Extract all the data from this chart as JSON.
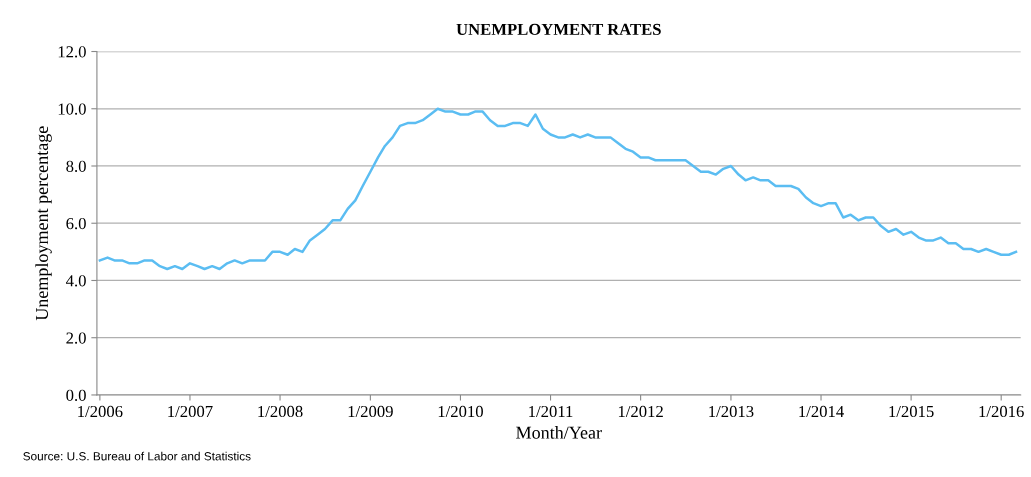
{
  "chart_data": {
    "type": "line",
    "title": "UNEMPLOYMENT RATES",
    "xlabel": "Month/Year",
    "ylabel": "Unemployment percentage",
    "annotations": [
      "Source: U.S. Bureau of Labor and Statistics"
    ],
    "x": [
      "2006-01",
      "2006-02",
      "2006-03",
      "2006-04",
      "2006-05",
      "2006-06",
      "2006-07",
      "2006-08",
      "2006-09",
      "2006-10",
      "2006-11",
      "2006-12",
      "2007-01",
      "2007-02",
      "2007-03",
      "2007-04",
      "2007-05",
      "2007-06",
      "2007-07",
      "2007-08",
      "2007-09",
      "2007-10",
      "2007-11",
      "2007-12",
      "2008-01",
      "2008-02",
      "2008-03",
      "2008-04",
      "2008-05",
      "2008-06",
      "2008-07",
      "2008-08",
      "2008-09",
      "2008-10",
      "2008-11",
      "2008-12",
      "2009-01",
      "2009-02",
      "2009-03",
      "2009-04",
      "2009-05",
      "2009-06",
      "2009-07",
      "2009-08",
      "2009-09",
      "2009-10",
      "2009-11",
      "2009-12",
      "2010-01",
      "2010-02",
      "2010-03",
      "2010-04",
      "2010-05",
      "2010-06",
      "2010-07",
      "2010-08",
      "2010-09",
      "2010-10",
      "2010-11",
      "2010-12",
      "2011-01",
      "2011-02",
      "2011-03",
      "2011-04",
      "2011-05",
      "2011-06",
      "2011-07",
      "2011-08",
      "2011-09",
      "2011-10",
      "2011-11",
      "2011-12",
      "2012-01",
      "2012-02",
      "2012-03",
      "2012-04",
      "2012-05",
      "2012-06",
      "2012-07",
      "2012-08",
      "2012-09",
      "2012-10",
      "2012-11",
      "2012-12",
      "2013-01",
      "2013-02",
      "2013-03",
      "2013-04",
      "2013-05",
      "2013-06",
      "2013-07",
      "2013-08",
      "2013-09",
      "2013-10",
      "2013-11",
      "2013-12",
      "2014-01",
      "2014-02",
      "2014-03",
      "2014-04",
      "2014-05",
      "2014-06",
      "2014-07",
      "2014-08",
      "2014-09",
      "2014-10",
      "2014-11",
      "2014-12",
      "2015-01",
      "2015-02",
      "2015-03",
      "2015-04",
      "2015-05",
      "2015-06",
      "2015-07",
      "2015-08",
      "2015-09",
      "2015-10",
      "2015-11",
      "2015-12",
      "2016-01",
      "2016-02",
      "2016-03"
    ],
    "series": [
      {
        "color": "#5bbdf2",
        "values": [
          4.7,
          4.8,
          4.7,
          4.7,
          4.6,
          4.6,
          4.7,
          4.7,
          4.5,
          4.4,
          4.5,
          4.4,
          4.6,
          4.5,
          4.4,
          4.5,
          4.4,
          4.6,
          4.7,
          4.6,
          4.7,
          4.7,
          4.7,
          5.0,
          5.0,
          4.9,
          5.1,
          5.0,
          5.4,
          5.6,
          5.8,
          6.1,
          6.1,
          6.5,
          6.8,
          7.3,
          7.8,
          8.3,
          8.7,
          9.0,
          9.4,
          9.5,
          9.5,
          9.6,
          9.8,
          10.0,
          9.9,
          9.9,
          9.8,
          9.8,
          9.9,
          9.9,
          9.6,
          9.4,
          9.4,
          9.5,
          9.5,
          9.4,
          9.8,
          9.3,
          9.1,
          9.0,
          9.0,
          9.1,
          9.0,
          9.1,
          9.0,
          9.0,
          9.0,
          8.8,
          8.6,
          8.5,
          8.3,
          8.3,
          8.2,
          8.2,
          8.2,
          8.2,
          8.2,
          8.0,
          7.8,
          7.8,
          7.7,
          7.9,
          8.0,
          7.7,
          7.5,
          7.6,
          7.5,
          7.5,
          7.3,
          7.3,
          7.3,
          7.2,
          6.9,
          6.7,
          6.6,
          6.7,
          6.7,
          6.2,
          6.3,
          6.1,
          6.2,
          6.2,
          5.9,
          5.7,
          5.8,
          5.6,
          5.7,
          5.5,
          5.4,
          5.4,
          5.5,
          5.3,
          5.3,
          5.1,
          5.1,
          5.0,
          5.1,
          5.0,
          4.9,
          4.9,
          5.0
        ]
      }
    ],
    "xlim": [
      "2005-12-20",
      "2016-03-20"
    ],
    "xticks": [
      {
        "value": "2006-01",
        "label": "1/2006"
      },
      {
        "value": "2007-01",
        "label": "1/2007"
      },
      {
        "value": "2008-01",
        "label": "1/2008"
      },
      {
        "value": "2009-01",
        "label": "1/2009"
      },
      {
        "value": "2010-01",
        "label": "1/2010"
      },
      {
        "value": "2011-01",
        "label": "1/2011"
      },
      {
        "value": "2012-01",
        "label": "1/2012"
      },
      {
        "value": "2013-01",
        "label": "1/2013"
      },
      {
        "value": "2014-01",
        "label": "1/2014"
      },
      {
        "value": "2015-01",
        "label": "1/2015"
      },
      {
        "value": "2016-01",
        "label": "1/2016"
      }
    ],
    "ylim": [
      0,
      12
    ],
    "yticks": [
      {
        "value": 0,
        "label": "0.0"
      },
      {
        "value": 2,
        "label": "2.0"
      },
      {
        "value": 4,
        "label": "4.0"
      },
      {
        "value": 6,
        "label": "6.0"
      },
      {
        "value": 8,
        "label": "8.0"
      },
      {
        "value": 10,
        "label": "10.0"
      },
      {
        "value": 12,
        "label": "12.0"
      }
    ],
    "grid": "y",
    "marker": "none",
    "line_style": "solid"
  }
}
